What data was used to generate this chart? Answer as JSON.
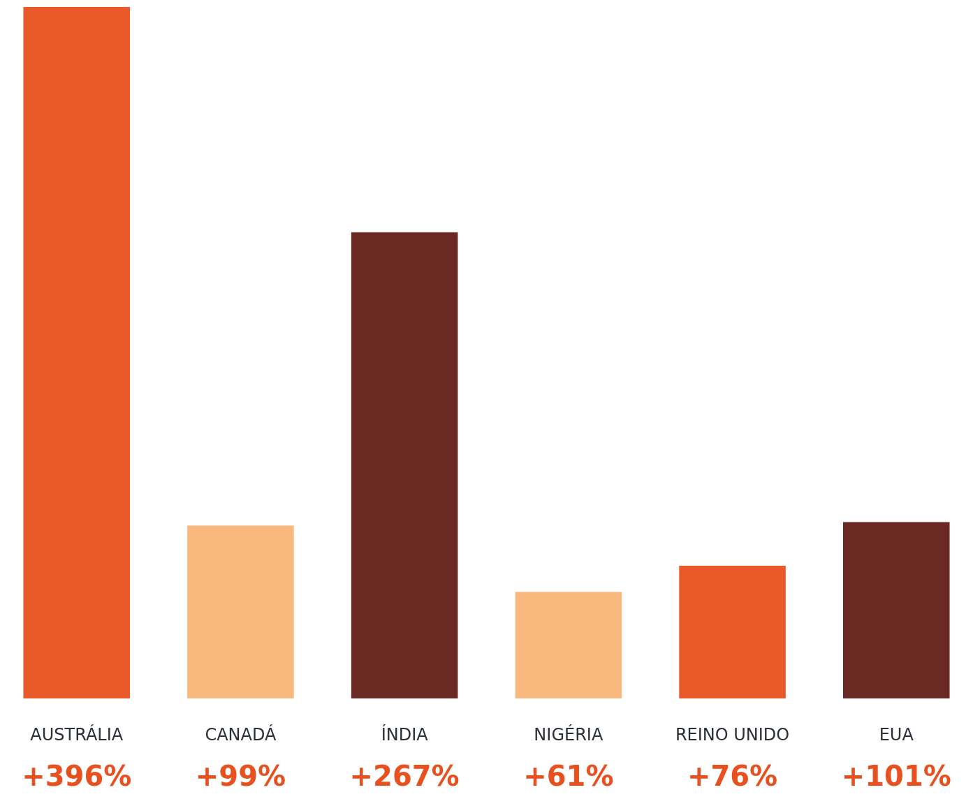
{
  "chart_data": {
    "type": "bar",
    "categories": [
      "AUSTRÁLIA",
      "CANADÁ",
      "ÍNDIA",
      "NIGÉRIA",
      "REINO UNIDO",
      "EUA"
    ],
    "values": [
      396,
      99,
      267,
      61,
      76,
      101
    ],
    "value_labels": [
      "+396%",
      "+99%",
      "+267%",
      "+61%",
      "+76%",
      "+101%"
    ],
    "colors": [
      "#e8501f",
      "#f9b577",
      "#621e16",
      "#f9b577",
      "#e8501f",
      "#621e16"
    ]
  }
}
